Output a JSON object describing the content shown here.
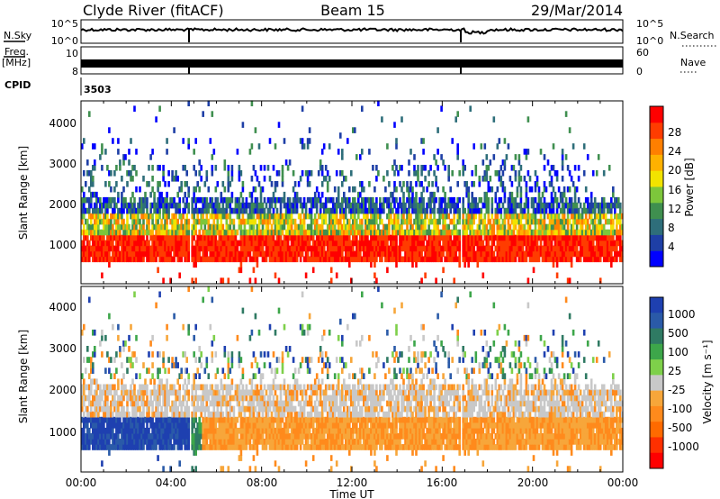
{
  "header": {
    "left": "Clyde River (fitACF)",
    "center": "Beam 15",
    "right": "29/Mar/2014"
  },
  "top_panels": {
    "nsky_label": "N.Sky",
    "nsky_ticks": [
      "10^5",
      "10^0"
    ],
    "nsearch_label": "N.Search",
    "nsearch_ticks": [
      "10^5",
      "10^0"
    ],
    "freq_label_1": "Freq.",
    "freq_label_2": "[MHz]",
    "freq_ticks": [
      "10",
      "8"
    ],
    "nave_label": "Nave",
    "nave_ticks": [
      "60",
      "0"
    ],
    "cpid_label": "CPID",
    "cpid_value": "3503"
  },
  "colors": {
    "power": [
      "#0000ff",
      "#1e3fa6",
      "#2e6e7a",
      "#3f8f4f",
      "#7dc63b",
      "#f2e300",
      "#ffb100",
      "#ff7f00",
      "#ff3c00",
      "#ff0000"
    ],
    "velocity": [
      "#1e40b0",
      "#2a5aa8",
      "#2f7a63",
      "#3da64a",
      "#7ed04a",
      "#c8c8c8",
      "#f7a63a",
      "#ff8a1c",
      "#ff6a00",
      "#ff3000",
      "#ff0000"
    ]
  },
  "chart_data": [
    {
      "type": "heatmap",
      "name": "power",
      "ylabel": "Slant Range [km]",
      "ylim": [
        180,
        4500
      ],
      "yticks": [
        "1000",
        "2000",
        "3000",
        "4000"
      ],
      "xlim_hours": [
        0,
        24
      ],
      "colorbar_label": "Power [dB]",
      "colorbar_ticks": [
        "4",
        "8",
        "12",
        "16",
        "20",
        "24",
        "28"
      ],
      "colorbar_range": [
        0,
        30
      ]
    },
    {
      "type": "heatmap",
      "name": "velocity",
      "ylabel": "Slant Range [km]",
      "ylim": [
        180,
        4500
      ],
      "yticks": [
        "1000",
        "2000",
        "3000",
        "4000"
      ],
      "xlim_hours": [
        0,
        24
      ],
      "colorbar_label": "Velocity [m s⁻¹]",
      "colorbar_ticks": [
        "1000",
        "500",
        "100",
        "25",
        "-25",
        "-100",
        "-500",
        "-1000"
      ]
    }
  ],
  "xaxis": {
    "label": "Time UT",
    "ticks": [
      "00:00",
      "04:00",
      "08:00",
      "12:00",
      "16:00",
      "20:00",
      "00:00"
    ]
  }
}
